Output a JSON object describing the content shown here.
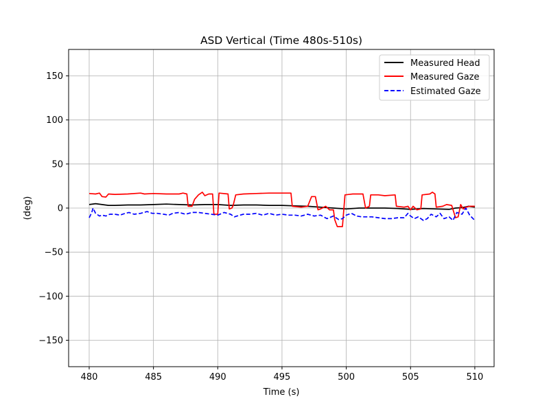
{
  "chart_data": {
    "type": "line",
    "title": "ASD Vertical (Time 480s-510s)",
    "xlabel": "Time (s)",
    "ylabel": "(deg)",
    "xlim": [
      478.4,
      511.5
    ],
    "ylim": [
      -180,
      180
    ],
    "xticks": [
      480,
      485,
      490,
      495,
      500,
      505,
      510
    ],
    "yticks": [
      -150,
      -100,
      -50,
      0,
      50,
      100,
      150
    ],
    "ytick_labels": [
      "−150",
      "−100",
      "−50",
      "0",
      "50",
      "100",
      "150"
    ],
    "grid": true,
    "legend_position": "top-right",
    "series": [
      {
        "name": "Measured Head",
        "color": "#000000",
        "dash": "solid",
        "points": [
          [
            480,
            4
          ],
          [
            480.5,
            5
          ],
          [
            481,
            4
          ],
          [
            481.5,
            3
          ],
          [
            482,
            3
          ],
          [
            483,
            3.5
          ],
          [
            484,
            3.5
          ],
          [
            485,
            4
          ],
          [
            486,
            4.5
          ],
          [
            487,
            4
          ],
          [
            488,
            3.5
          ],
          [
            489,
            4
          ],
          [
            490,
            4
          ],
          [
            491,
            3
          ],
          [
            492,
            3.5
          ],
          [
            493,
            3.5
          ],
          [
            494,
            3
          ],
          [
            495,
            3
          ],
          [
            496,
            2.5
          ],
          [
            497,
            2
          ],
          [
            498,
            1
          ],
          [
            499,
            0
          ],
          [
            500,
            -1
          ],
          [
            501,
            0
          ],
          [
            502,
            0
          ],
          [
            503,
            0
          ],
          [
            504,
            -0.5
          ],
          [
            505,
            -1.5
          ],
          [
            506,
            -0.5
          ],
          [
            507,
            -1
          ],
          [
            508,
            -1.5
          ],
          [
            508.5,
            0
          ],
          [
            509,
            0.5
          ],
          [
            509.5,
            2
          ],
          [
            510,
            1
          ]
        ]
      },
      {
        "name": "Measured Gaze",
        "color": "#ff0000",
        "dash": "solid",
        "points": [
          [
            480,
            16.5
          ],
          [
            480.5,
            16
          ],
          [
            480.8,
            17
          ],
          [
            481,
            13
          ],
          [
            481.3,
            12.5
          ],
          [
            481.5,
            16
          ],
          [
            482,
            15.5
          ],
          [
            483,
            16
          ],
          [
            484,
            17
          ],
          [
            484.3,
            16
          ],
          [
            485,
            16.5
          ],
          [
            486,
            16
          ],
          [
            487,
            16
          ],
          [
            487.3,
            17
          ],
          [
            487.6,
            16
          ],
          [
            487.7,
            2
          ],
          [
            488,
            2
          ],
          [
            488.2,
            10
          ],
          [
            488.5,
            15
          ],
          [
            488.8,
            18
          ],
          [
            489,
            14
          ],
          [
            489.3,
            16
          ],
          [
            489.6,
            16
          ],
          [
            489.7,
            -7
          ],
          [
            490,
            -7
          ],
          [
            490.1,
            17
          ],
          [
            490.8,
            16
          ],
          [
            490.9,
            -1
          ],
          [
            491.1,
            0
          ],
          [
            491.2,
            3
          ],
          [
            491.4,
            15
          ],
          [
            492,
            16
          ],
          [
            493,
            16.5
          ],
          [
            494,
            17
          ],
          [
            495,
            17
          ],
          [
            495.7,
            17
          ],
          [
            495.8,
            2
          ],
          [
            496.5,
            1
          ],
          [
            497,
            2
          ],
          [
            497.3,
            13
          ],
          [
            497.6,
            13
          ],
          [
            497.8,
            -2
          ],
          [
            498,
            -1
          ],
          [
            498.4,
            2
          ],
          [
            498.7,
            -2
          ],
          [
            499,
            -2
          ],
          [
            499.1,
            -13
          ],
          [
            499.3,
            -21
          ],
          [
            499.7,
            -21
          ],
          [
            499.9,
            15
          ],
          [
            500.5,
            16
          ],
          [
            501.3,
            16
          ],
          [
            501.5,
            0
          ],
          [
            501.8,
            2
          ],
          [
            501.9,
            15
          ],
          [
            502.5,
            15
          ],
          [
            503,
            14
          ],
          [
            503.8,
            15
          ],
          [
            503.9,
            2
          ],
          [
            504.5,
            1
          ],
          [
            504.8,
            2
          ],
          [
            505,
            -2
          ],
          [
            505.2,
            2
          ],
          [
            505.5,
            -2
          ],
          [
            505.8,
            -1
          ],
          [
            505.9,
            15
          ],
          [
            506.5,
            16
          ],
          [
            506.7,
            18
          ],
          [
            506.9,
            16
          ],
          [
            507,
            1
          ],
          [
            507.5,
            2
          ],
          [
            507.8,
            4
          ],
          [
            508.2,
            3
          ],
          [
            508.5,
            -11
          ],
          [
            508.7,
            -10
          ],
          [
            508.9,
            4
          ],
          [
            509.1,
            -1
          ],
          [
            509.3,
            1
          ],
          [
            509.6,
            2
          ],
          [
            510,
            2
          ]
        ]
      },
      {
        "name": "Estimated Gaze",
        "color": "#0000ff",
        "dash": "dashed",
        "points": [
          [
            480,
            -11
          ],
          [
            480.2,
            -5
          ],
          [
            480.3,
            0
          ],
          [
            480.5,
            -6
          ],
          [
            480.8,
            -9
          ],
          [
            481,
            -8
          ],
          [
            481.3,
            -9
          ],
          [
            481.6,
            -7
          ],
          [
            482,
            -7
          ],
          [
            482.4,
            -8
          ],
          [
            482.8,
            -6
          ],
          [
            483.1,
            -5
          ],
          [
            483.5,
            -7
          ],
          [
            484,
            -6
          ],
          [
            484.5,
            -4
          ],
          [
            484.9,
            -6
          ],
          [
            485.3,
            -6
          ],
          [
            485.8,
            -7
          ],
          [
            486.2,
            -8
          ],
          [
            486.5,
            -6
          ],
          [
            487,
            -5
          ],
          [
            487.5,
            -7
          ],
          [
            488,
            -5
          ],
          [
            488.5,
            -5
          ],
          [
            489,
            -6
          ],
          [
            489.5,
            -7
          ],
          [
            490,
            -8
          ],
          [
            490.5,
            -5
          ],
          [
            491,
            -7
          ],
          [
            491.3,
            -10
          ],
          [
            491.5,
            -9
          ],
          [
            492,
            -7
          ],
          [
            492.5,
            -7
          ],
          [
            493,
            -6
          ],
          [
            493.5,
            -8
          ],
          [
            494,
            -6
          ],
          [
            494.5,
            -8
          ],
          [
            495,
            -7
          ],
          [
            495.5,
            -8
          ],
          [
            496,
            -8
          ],
          [
            496.5,
            -9
          ],
          [
            497,
            -7
          ],
          [
            497.5,
            -9
          ],
          [
            498,
            -8
          ],
          [
            498.5,
            -12
          ],
          [
            499,
            -9
          ],
          [
            499.4,
            -13
          ],
          [
            499.7,
            -12
          ],
          [
            500,
            -8
          ],
          [
            500.4,
            -6
          ],
          [
            500.8,
            -9
          ],
          [
            501.2,
            -10
          ],
          [
            501.6,
            -10
          ],
          [
            502,
            -10
          ],
          [
            502.5,
            -11
          ],
          [
            503,
            -12
          ],
          [
            503.5,
            -12
          ],
          [
            504,
            -11
          ],
          [
            504.5,
            -11
          ],
          [
            504.8,
            -6
          ],
          [
            505,
            -9
          ],
          [
            505.3,
            -12
          ],
          [
            505.6,
            -10
          ],
          [
            506,
            -14
          ],
          [
            506.3,
            -12
          ],
          [
            506.6,
            -7
          ],
          [
            507,
            -10
          ],
          [
            507.3,
            -6
          ],
          [
            507.6,
            -12
          ],
          [
            508,
            -10
          ],
          [
            508.3,
            -14
          ],
          [
            508.6,
            -5
          ],
          [
            509,
            -7
          ],
          [
            509.3,
            0
          ],
          [
            509.6,
            -8
          ],
          [
            510,
            -14
          ]
        ]
      }
    ]
  }
}
